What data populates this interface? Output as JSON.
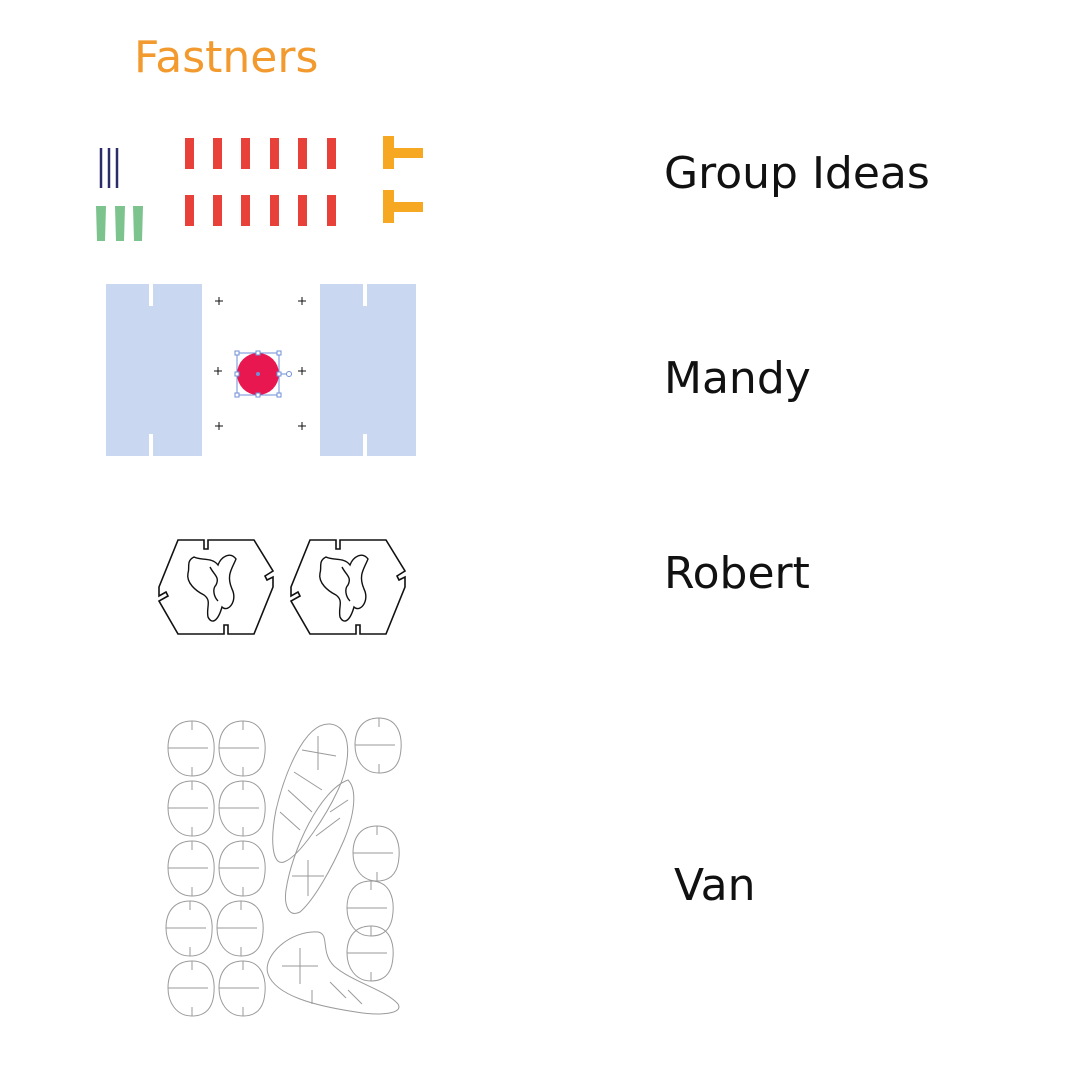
{
  "heading": "Fastners",
  "groups": [
    {
      "label": "Group Ideas"
    },
    {
      "label": "Mandy"
    },
    {
      "label": "Robert"
    },
    {
      "label": "Van"
    }
  ],
  "colors": {
    "heading": "#f29a2e",
    "red_pegs": "#e8413a",
    "orange_t": "#f7a823",
    "navy_lines": "#2b2d6b",
    "green_pegs": "#7dc38e",
    "blue_panels": "#c9d8f0",
    "magenta_dot": "#e8174f",
    "selection": "#6f8fd9",
    "outline": "#111111",
    "light_outline": "#9a9a9a"
  },
  "icons": [
    "fastener-pegs",
    "slotted-panels",
    "hexagon-puzzle-pieces",
    "leaf-cutout-pieces"
  ]
}
